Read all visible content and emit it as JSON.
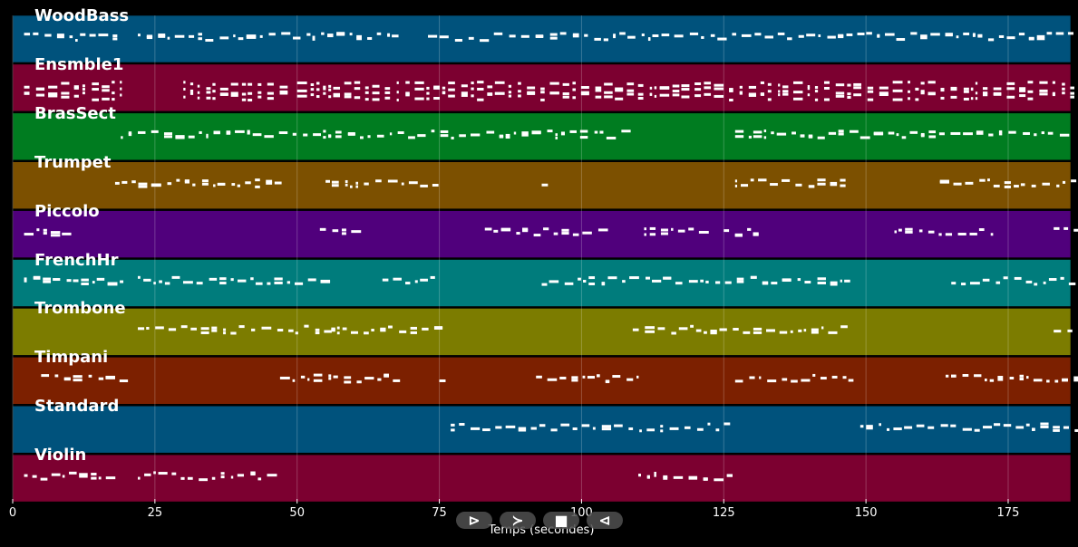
{
  "tracks": [
    {
      "name": "WoodBass",
      "color": "#00527c"
    },
    {
      "name": "Ensmble1",
      "color": "#7c0030"
    },
    {
      "name": "BrasSect",
      "color": "#007c20"
    },
    {
      "name": "Trumpet",
      "color": "#7c5000"
    },
    {
      "name": "Piccolo",
      "color": "#50007c"
    },
    {
      "name": "FrenchHr",
      "color": "#007c7c"
    },
    {
      "name": "Trombone",
      "color": "#7c7c00"
    },
    {
      "name": "Timpani",
      "color": "#7c2000"
    },
    {
      "name": "Standard",
      "color": "#00527c"
    },
    {
      "name": "Violin",
      "color": "#7c0030"
    }
  ],
  "x_axis": {
    "label": "Temps (secondes)",
    "min": 0,
    "max": 186,
    "ticks": [
      "0",
      "25",
      "50",
      "75",
      "100",
      "125",
      "150",
      "175"
    ]
  },
  "controls": {
    "play_label": "⊳",
    "forward_label": "≻",
    "stop_label": "■",
    "back_label": "⊲"
  },
  "note_activity": [
    [
      [
        2,
        19
      ],
      [
        22,
        68
      ],
      [
        73,
        187
      ]
    ],
    [
      [
        2,
        19
      ],
      [
        30,
        47
      ],
      [
        50,
        188
      ]
    ],
    [
      [
        19,
        109
      ],
      [
        127,
        186
      ]
    ],
    [
      [
        18,
        48
      ],
      [
        55,
        75
      ],
      [
        93,
        94
      ],
      [
        127,
        147
      ],
      [
        163,
        187
      ]
    ],
    [
      [
        2,
        10
      ],
      [
        54,
        60
      ],
      [
        83,
        104
      ],
      [
        111,
        122
      ],
      [
        125,
        131
      ],
      [
        155,
        172
      ],
      [
        183,
        187
      ]
    ],
    [
      [
        2,
        19
      ],
      [
        22,
        56
      ],
      [
        65,
        75
      ],
      [
        93,
        147
      ],
      [
        165,
        187
      ]
    ],
    [
      [
        22,
        56
      ],
      [
        56,
        75
      ],
      [
        109,
        147
      ],
      [
        183,
        187
      ]
    ],
    [
      [
        5,
        20
      ],
      [
        47,
        67
      ],
      [
        75,
        76
      ],
      [
        92,
        110
      ],
      [
        127,
        147
      ],
      [
        164,
        187
      ]
    ],
    [
      [
        77,
        126
      ],
      [
        149,
        187
      ]
    ],
    [
      [
        2,
        19
      ],
      [
        22,
        47
      ],
      [
        110,
        126
      ]
    ]
  ]
}
